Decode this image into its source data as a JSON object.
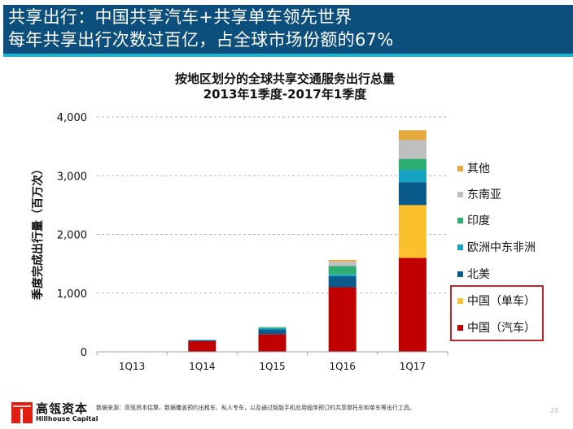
{
  "header": {
    "line1": "共享出行：中国共享汽车+共享单车领先世界",
    "line2": "每年共享出行次数过百亿，占全球市场份额的67%"
  },
  "colors": {
    "header_bg": "#0c4f7c",
    "header_stripe": "#1fb3cf",
    "highlight_border": "#c1272d"
  },
  "chart_data": {
    "type": "bar",
    "stacked": true,
    "title": "按地区划分的全球共享交通服务出行总量",
    "subtitle": "2013年1季度-2017年1季度",
    "xlabel": "",
    "ylabel": "季度完成出行量（百万次）",
    "ylim": [
      0,
      4000
    ],
    "yticks": [
      0,
      1000,
      2000,
      3000,
      4000
    ],
    "ytick_labels": [
      "0",
      "1,000",
      "2,000",
      "3,000",
      "4,000"
    ],
    "grid": "horizontal-dashed",
    "categories": [
      "1Q13",
      "1Q14",
      "1Q15",
      "1Q16",
      "1Q17"
    ],
    "series": [
      {
        "name": "中国（汽车）",
        "color": "#c00000",
        "values": [
          0,
          180,
          300,
          1100,
          1600
        ]
      },
      {
        "name": "中国（单车）",
        "color": "#fbc02d",
        "values": [
          0,
          0,
          0,
          0,
          900
        ]
      },
      {
        "name": "北美",
        "color": "#0b5a8c",
        "values": [
          0,
          20,
          80,
          190,
          390
        ]
      },
      {
        "name": "欧洲中东非洲",
        "color": "#14a3c2",
        "values": [
          0,
          0,
          25,
          30,
          210
        ]
      },
      {
        "name": "印度",
        "color": "#2fae74",
        "values": [
          0,
          0,
          15,
          140,
          190
        ]
      },
      {
        "name": "东南亚",
        "color": "#bfbfbf",
        "values": [
          0,
          0,
          0,
          80,
          320
        ]
      },
      {
        "name": "其他",
        "color": "#e5a93b",
        "values": [
          0,
          0,
          0,
          25,
          165
        ]
      }
    ],
    "legend": {
      "placement": "right",
      "order": [
        "其他",
        "东南亚",
        "印度",
        "欧洲中东非洲",
        "北美",
        "中国（单车）",
        "中国（汽车）"
      ],
      "highlighted": [
        "中国（单车）",
        "中国（汽车）"
      ]
    }
  },
  "footer": {
    "logo_cn": "高瓴资本",
    "logo_en": "Hillhouse Capital",
    "note": "数据来源：高瓴资本估算。数据覆盖预约出租车、私人专车，以及通过智能手机应用程序预订的共享摩托车和单车等出行工具。",
    "page_number": "26"
  }
}
